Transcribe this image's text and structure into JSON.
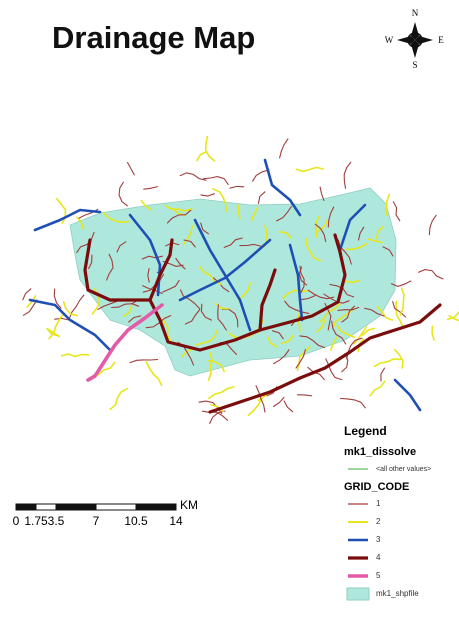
{
  "title": "Drainage Map",
  "compass": {
    "north": "N",
    "south": "S",
    "east": "E",
    "west": "W"
  },
  "legend": {
    "title": "Legend",
    "layers": [
      {
        "name": "mk1_dissolve",
        "items": [
          {
            "label": "<all other values>",
            "color": "#3aa83a",
            "width": 1
          }
        ]
      },
      {
        "name": "GRID_CODE",
        "items": [
          {
            "label": "1",
            "color": "#a23c3c",
            "width": 1.2
          },
          {
            "label": "2",
            "color": "#e6e619",
            "width": 2
          },
          {
            "label": "3",
            "color": "#1e4fb4",
            "width": 2.6
          },
          {
            "label": "4",
            "color": "#7a0c0c",
            "width": 3.2
          },
          {
            "label": "5",
            "color": "#e45aa6",
            "width": 3.6
          }
        ]
      }
    ],
    "fill": {
      "label": "mk1_shpfile",
      "color": "#aee8dc"
    }
  },
  "scale_bar": {
    "unit": "KM",
    "ticks": [
      0,
      1.75,
      3.5,
      7,
      10.5,
      14
    ]
  }
}
